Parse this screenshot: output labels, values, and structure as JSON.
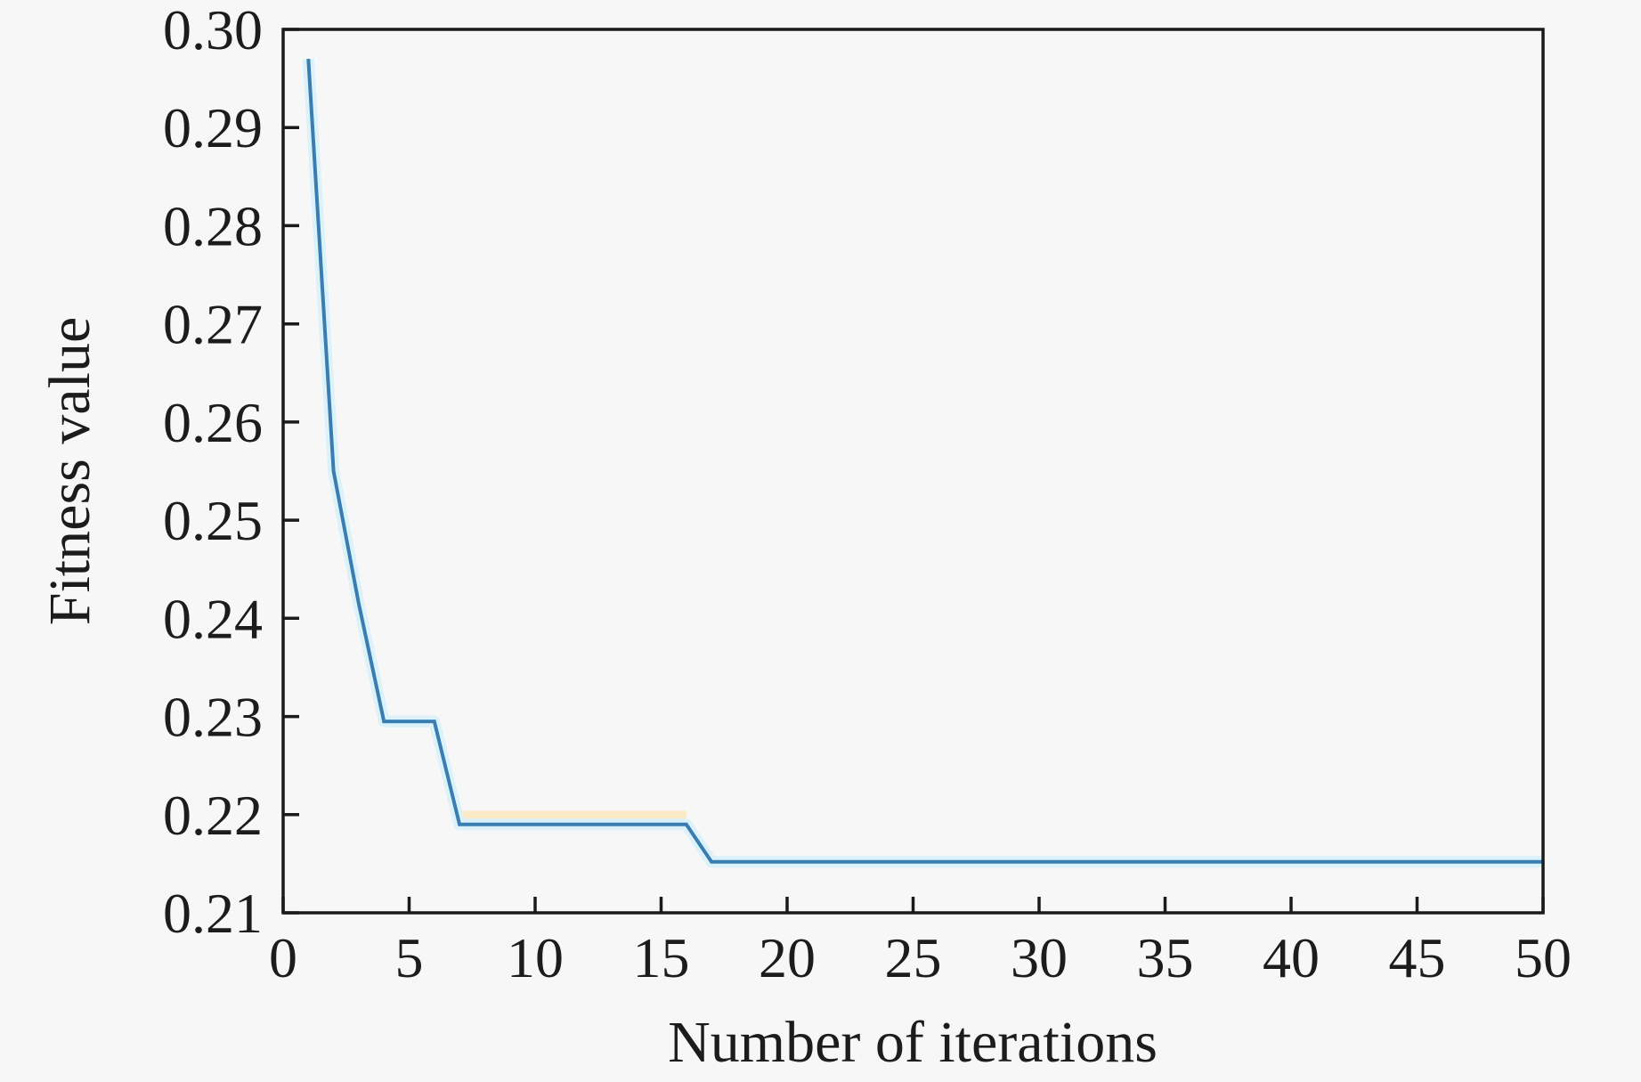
{
  "page": {
    "background": "#f7f7f7"
  },
  "colors": {
    "axis": "#1a1a1a",
    "text": "#1c1c1c",
    "series_line": "#3a7db0",
    "line_glow": "#d9f1fa",
    "artifact_band": "#fbe9c3"
  },
  "chart_data": {
    "type": "line",
    "title": "",
    "xlabel": "Number of iterations",
    "ylabel": "Fitness value",
    "xlim": [
      0,
      50
    ],
    "ylim": [
      0.21,
      0.3
    ],
    "grid": false,
    "legend": null,
    "x_tick_values": [
      0,
      5,
      10,
      15,
      20,
      25,
      30,
      35,
      40,
      45,
      50
    ],
    "x_tick_labels": [
      "0",
      "5",
      "10",
      "15",
      "20",
      "25",
      "30",
      "35",
      "40",
      "45",
      "50"
    ],
    "y_tick_values": [
      0.21,
      0.22,
      0.23,
      0.24,
      0.25,
      0.26,
      0.27,
      0.28,
      0.29,
      0.3
    ],
    "y_tick_labels": [
      "0.21",
      "0.22",
      "0.23",
      "0.24",
      "0.25",
      "0.26",
      "0.27",
      "0.28",
      "0.29",
      "0.30"
    ],
    "series": [
      {
        "name": "fitness-curve",
        "color": "#3a7db0",
        "x": [
          1,
          2,
          3,
          4,
          5,
          6,
          7,
          8,
          9,
          10,
          11,
          12,
          13,
          14,
          15,
          16,
          17,
          18,
          19,
          20,
          21,
          22,
          23,
          24,
          25,
          26,
          27,
          28,
          29,
          30,
          31,
          32,
          33,
          34,
          35,
          36,
          37,
          38,
          39,
          40,
          41,
          42,
          43,
          44,
          45,
          46,
          47,
          48,
          49,
          50
        ],
        "y": [
          0.297,
          0.255,
          0.2415,
          0.2295,
          0.2295,
          0.2295,
          0.219,
          0.219,
          0.219,
          0.219,
          0.219,
          0.219,
          0.219,
          0.219,
          0.219,
          0.219,
          0.2152,
          0.2152,
          0.2152,
          0.2152,
          0.2152,
          0.2152,
          0.2152,
          0.2152,
          0.2152,
          0.2152,
          0.2152,
          0.2152,
          0.2152,
          0.2152,
          0.2152,
          0.2152,
          0.2152,
          0.2152,
          0.2152,
          0.2152,
          0.2152,
          0.2152,
          0.2152,
          0.2152,
          0.2152,
          0.2152,
          0.2152,
          0.2152,
          0.2152,
          0.2152,
          0.2152,
          0.2152,
          0.2152,
          0.2152
        ]
      }
    ]
  },
  "artifacts": {
    "band_from_iter": 7,
    "band_to_iter": 16,
    "band_value": 0.219
  }
}
